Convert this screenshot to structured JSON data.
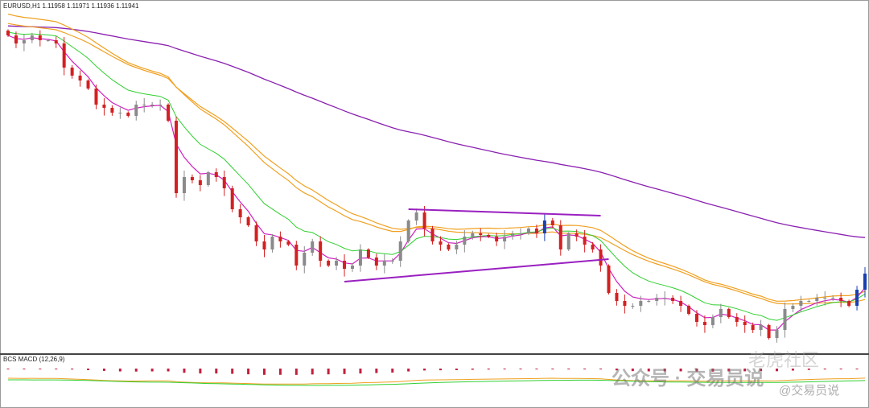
{
  "header": {
    "symbol_info": "EURUSD,H1  1.11958 1.11971 1.11936 1.11941"
  },
  "indicator": {
    "label": "BCS MACD (12,26,9)"
  },
  "watermark": {
    "main": "公众号 · 交易员说",
    "handle": "@交易员说",
    "community": "老虎社区"
  },
  "colors": {
    "bear": "#d42020",
    "bull": "#8a8a8a",
    "bull_strong": "#1a3fb0",
    "ma_fast": "#d020c0",
    "ma_mid": "#f0a020",
    "ma_slow": "#8a20b0",
    "signal": "#30d030",
    "trendline": "#9a20c0",
    "macd_pos": "#3090d0",
    "macd_neg": "#c02040"
  },
  "chart_data": {
    "type": "candlestick",
    "symbol": "EURUSD",
    "timeframe": "H1",
    "last_ohlc": {
      "open": 1.11958,
      "high": 1.11971,
      "low": 1.11936,
      "close": 1.11941
    },
    "closes": [
      1.1342,
      1.1337,
      1.1339,
      1.1342,
      1.1339,
      1.1339,
      1.1337,
      1.1322,
      1.1317,
      1.1314,
      1.1309,
      1.1299,
      1.1297,
      1.1294,
      1.1294,
      1.1292,
      1.1299,
      1.1299,
      1.1299,
      1.1299,
      1.1289,
      1.1244,
      1.1254,
      1.1252,
      1.1249,
      1.1257,
      1.1254,
      1.1247,
      1.1234,
      1.1229,
      1.1224,
      1.1214,
      1.1209,
      1.1217,
      1.1214,
      1.1212,
      1.1199,
      1.1207,
      1.1214,
      1.1202,
      1.1199,
      1.1202,
      1.1197,
      1.1199,
      1.1209,
      1.1204,
      1.1199,
      1.1202,
      1.1202,
      1.1214,
      1.1227,
      1.1232,
      1.1222,
      1.1214,
      1.1212,
      1.1209,
      1.1212,
      1.1217,
      1.1219,
      1.1218,
      1.1217,
      1.1214,
      1.1217,
      1.1219,
      1.1219,
      1.1222,
      1.1219,
      1.1227,
      1.1224,
      1.1209,
      1.1219,
      1.1217,
      1.1212,
      1.1209,
      1.1199,
      1.1182,
      1.1177,
      1.1174,
      1.1174,
      1.1177,
      1.1177,
      1.1179,
      1.1179,
      1.1177,
      1.1174,
      1.1169,
      1.1164,
      1.1162,
      1.1167,
      1.1172,
      1.1167,
      1.1164,
      1.1162,
      1.1159,
      1.1162,
      1.1154,
      1.1159,
      1.1172,
      1.1174,
      1.1177,
      1.1177,
      1.1179,
      1.1179,
      1.1179,
      1.1177,
      1.1174,
      1.1184,
      1.1194
    ],
    "trendlines": [
      {
        "from": {
          "bar": 50,
          "price": 1.1234
        },
        "to": {
          "bar": 74,
          "price": 1.123
        }
      },
      {
        "from": {
          "bar": 42,
          "price": 1.1189
        },
        "to": {
          "bar": 75,
          "price": 1.1203
        }
      }
    ],
    "macd": {
      "fast": 12,
      "slow": 26,
      "signal": 9
    }
  }
}
